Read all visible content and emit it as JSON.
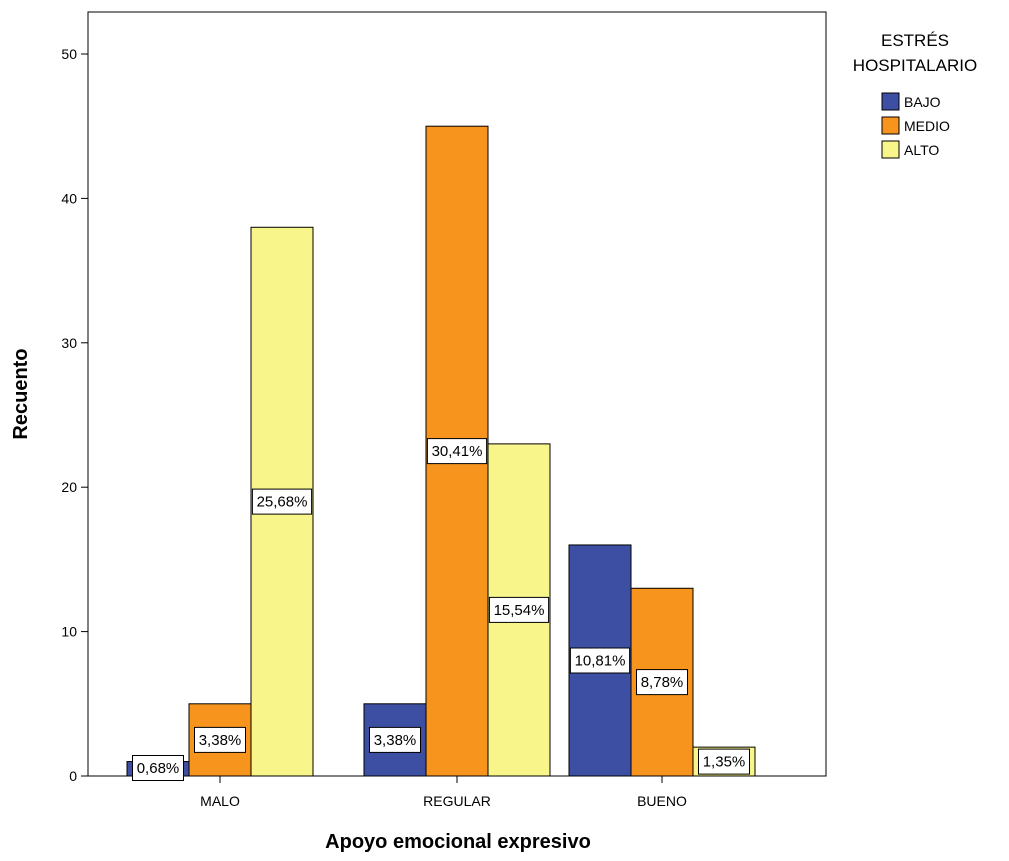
{
  "chart_data": {
    "type": "bar",
    "title": "",
    "xlabel": "Apoyo emocional expresivo",
    "ylabel": "Recuento",
    "categories": [
      "MALO",
      "REGULAR",
      "BUENO"
    ],
    "ylim": [
      0,
      52
    ],
    "yticks": [
      0,
      10,
      20,
      30,
      40,
      50
    ],
    "grid": false,
    "legend": {
      "title_lines": [
        "ESTRÉS",
        "HOSPITALARIO"
      ],
      "placement": "top-right outside"
    },
    "series": [
      {
        "name": "BAJO",
        "color": "#3c4fa3",
        "values": [
          1,
          5,
          16
        ],
        "labels": [
          "0,68%",
          "3,38%",
          "10,81%"
        ]
      },
      {
        "name": "MEDIO",
        "color": "#f7941d",
        "values": [
          5,
          45,
          13
        ],
        "labels": [
          "3,38%",
          "30,41%",
          "8,78%"
        ]
      },
      {
        "name": "ALTO",
        "color": "#f8f58a",
        "values": [
          38,
          23,
          2
        ],
        "labels": [
          "25,68%",
          "15,54%",
          "1,35%"
        ]
      }
    ]
  }
}
